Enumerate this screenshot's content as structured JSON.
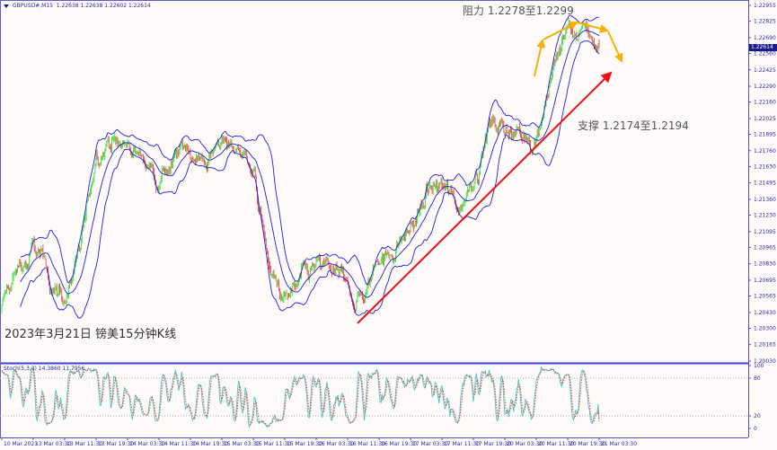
{
  "header": {
    "symbol": "GBPUSD#,M15",
    "ohlc": "1.22638 1.22638 1.22602 1.22614"
  },
  "annotations": {
    "resistance": "阻力 1.2278至1.2299",
    "support": "支撑 1.2174至1.2194",
    "title": "2023年3月21日 镑美15分钟K线"
  },
  "colors": {
    "background": "#fffafa",
    "axis": "#2a2aa8",
    "bull": "#22dd22",
    "bear": "#ee3333",
    "bands": "#2020dd",
    "trendline": "#ee1111",
    "forecast": "#f5b000",
    "stoch_main": "#40c8c0",
    "stoch_signal": "#ee3333"
  },
  "chart_data": [
    {
      "type": "candlestick",
      "timeframe": "M15",
      "indicators": [
        "Bollinger Bands"
      ],
      "ylim": [
        1.2003,
        1.22955
      ],
      "y_ticks": [
        "1.22955",
        "1.22825",
        "1.22690",
        "1.22560",
        "1.22425",
        "1.22290",
        "1.22160",
        "1.22025",
        "1.21895",
        "1.21760",
        "1.21630",
        "1.21495",
        "1.21360",
        "1.21230",
        "1.21095",
        "1.20965",
        "1.20830",
        "1.20695",
        "1.20565",
        "1.20430",
        "1.20300",
        "1.20165",
        "1.20030"
      ],
      "current_price": "1.22614",
      "x_ticks": [
        "10 Mar 2023",
        "13 Mar 03:30",
        "13 Mar 11:30",
        "13 Mar 19:30",
        "14 Mar 03:30",
        "14 Mar 11:30",
        "14 Mar 19:30",
        "15 Mar 03:30",
        "15 Mar 11:30",
        "15 Mar 19:30",
        "16 Mar 03:30",
        "16 Mar 11:30",
        "16 Mar 19:30",
        "17 Mar 03:30",
        "17 Mar 11:30",
        "17 Mar 19:30",
        "20 Mar 03:30",
        "20 Mar 11:30",
        "20 Mar 19:30",
        "21 Mar 03:30"
      ],
      "close_sample_interval": "4h",
      "closes": [
        1.2045,
        1.2078,
        1.2093,
        1.207,
        1.206,
        1.2086,
        1.2175,
        1.219,
        1.218,
        1.2167,
        1.216,
        1.2172,
        1.218,
        1.217,
        1.2185,
        1.2175,
        1.216,
        1.208,
        1.2045,
        1.2065,
        1.2075,
        1.2075,
        1.206,
        1.2055,
        1.2085,
        1.2095,
        1.211,
        1.214,
        1.215,
        1.213,
        1.216,
        1.2195,
        1.2195,
        1.2188,
        1.2192,
        1.224,
        1.2275,
        1.2272,
        1.2261
      ]
    },
    {
      "type": "line",
      "indicator": "Stoch(5,3,3)",
      "label": "Stoch(5,3,3) 14.3860 11.7956",
      "main_value": 14.386,
      "signal_value": 11.7956,
      "ylim": [
        0,
        100
      ],
      "y_ticks": [
        "100",
        "80",
        "20",
        "0"
      ],
      "levels": [
        80,
        20
      ]
    }
  ]
}
